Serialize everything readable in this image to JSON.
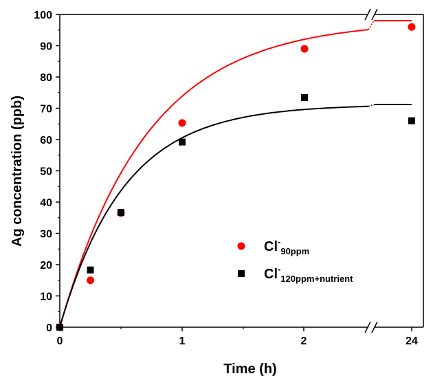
{
  "chart_data": {
    "type": "scatter",
    "xlabel": "Time (h)",
    "ylabel": "Ag concentration (ppb)",
    "ylim": [
      0,
      100
    ],
    "y_ticks": [
      0,
      10,
      20,
      30,
      40,
      50,
      60,
      70,
      80,
      90,
      100
    ],
    "x_ticks": [
      "0",
      "1",
      "2",
      "24"
    ],
    "x_axis_break": "between 2 and 24",
    "grid": false,
    "legend_position": "lower-right",
    "series": [
      {
        "name": "Cl",
        "name_superscript": "-",
        "name_subscript": "90ppm",
        "color": "#ff0000",
        "marker": "circle",
        "points": [
          {
            "x": 0,
            "y": 0
          },
          {
            "x": 0.25,
            "y": 15
          },
          {
            "x": 0.5,
            "y": 36.5
          },
          {
            "x": 1,
            "y": 65.3
          },
          {
            "x": 2,
            "y": 89
          },
          {
            "x": 24,
            "y": 96
          }
        ],
        "fit_curve": {
          "plateau": 98,
          "rate": 1.4,
          "plateau_after_break": 98
        }
      },
      {
        "name": "Cl",
        "name_superscript": "-",
        "name_subscript": "120ppm+nutrient",
        "color": "#000000",
        "marker": "square",
        "points": [
          {
            "x": 0,
            "y": 0
          },
          {
            "x": 0.25,
            "y": 18.3
          },
          {
            "x": 0.5,
            "y": 36.7
          },
          {
            "x": 1,
            "y": 59.2
          },
          {
            "x": 2,
            "y": 73.4
          },
          {
            "x": 24,
            "y": 66
          }
        ],
        "fit_curve": {
          "plateau": 71.2,
          "rate": 1.9,
          "plateau_after_break": 71.2
        }
      }
    ]
  }
}
